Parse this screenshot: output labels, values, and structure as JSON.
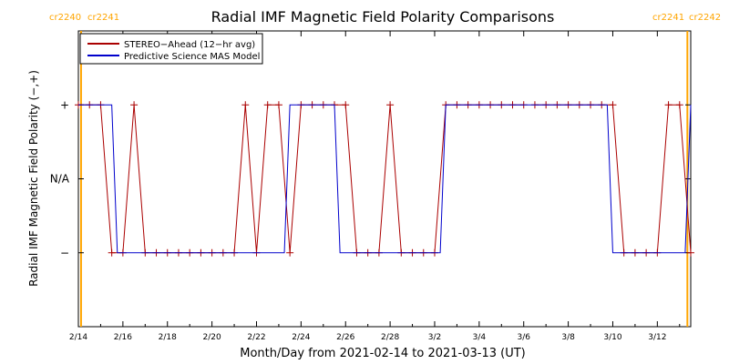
{
  "chart_data": {
    "type": "line",
    "title": "Radial IMF Magnetic Field Polarity Comparisons",
    "xlabel": "Month/Day from 2021-02-14 to 2021-03-13 (UT)",
    "ylabel": "Radial IMF Magnetic Field Polarity (−,+)",
    "xlim": [
      0,
      27.5
    ],
    "ylim": [
      -2,
      2
    ],
    "x_units": "days since 2021-02-14 00:00 UT",
    "x_tick_values": [
      0,
      2,
      4,
      6,
      8,
      10,
      12,
      14,
      16,
      18,
      20,
      22,
      24,
      26
    ],
    "x_tick_labels": [
      "2/14",
      "2/16",
      "2/18",
      "2/20",
      "2/22",
      "2/24",
      "2/26",
      "2/28",
      "3/2",
      "3/4",
      "3/6",
      "3/8",
      "3/10",
      "3/12"
    ],
    "y_tick_values": [
      1,
      0,
      -1
    ],
    "y_tick_labels": [
      "+",
      "N/A",
      "−"
    ],
    "grid": false,
    "legend": "top-left",
    "rotation_markers": [
      {
        "x": 0.12,
        "label_left": "cr2240",
        "label_right": "cr2241",
        "color": "#ffa500"
      },
      {
        "x": 27.35,
        "label_left": "cr2241",
        "label_right": "cr2242",
        "color": "#ffa500"
      }
    ],
    "series": [
      {
        "name": "STEREO−Ahead (12−hr avg)",
        "color": "#aa0000",
        "marker": "plus",
        "points": [
          [
            0.0,
            1
          ],
          [
            0.5,
            1
          ],
          [
            1.0,
            1
          ],
          [
            1.5,
            -1
          ],
          [
            2.0,
            -1
          ],
          [
            2.5,
            1
          ],
          [
            3.0,
            -1
          ],
          [
            3.5,
            -1
          ],
          [
            4.0,
            -1
          ],
          [
            4.5,
            -1
          ],
          [
            5.0,
            -1
          ],
          [
            5.5,
            -1
          ],
          [
            6.0,
            -1
          ],
          [
            6.5,
            -1
          ],
          [
            7.0,
            -1
          ],
          [
            7.5,
            1
          ],
          [
            8.0,
            -1
          ],
          [
            8.5,
            1
          ],
          [
            9.0,
            1
          ],
          [
            9.5,
            -1
          ],
          [
            10.0,
            1
          ],
          [
            10.5,
            1
          ],
          [
            11.0,
            1
          ],
          [
            11.5,
            1
          ],
          [
            12.0,
            1
          ],
          [
            12.5,
            -1
          ],
          [
            13.0,
            -1
          ],
          [
            13.5,
            -1
          ],
          [
            14.0,
            1
          ],
          [
            14.5,
            -1
          ],
          [
            15.0,
            -1
          ],
          [
            15.5,
            -1
          ],
          [
            16.0,
            -1
          ],
          [
            16.5,
            1
          ],
          [
            17.0,
            1
          ],
          [
            17.5,
            1
          ],
          [
            18.0,
            1
          ],
          [
            18.5,
            1
          ],
          [
            19.0,
            1
          ],
          [
            19.5,
            1
          ],
          [
            20.0,
            1
          ],
          [
            20.5,
            1
          ],
          [
            21.0,
            1
          ],
          [
            21.5,
            1
          ],
          [
            22.0,
            1
          ],
          [
            22.5,
            1
          ],
          [
            23.0,
            1
          ],
          [
            23.5,
            1
          ],
          [
            24.0,
            1
          ],
          [
            24.5,
            -1
          ],
          [
            25.0,
            -1
          ],
          [
            25.5,
            -1
          ],
          [
            26.0,
            -1
          ],
          [
            26.5,
            1
          ],
          [
            27.0,
            1
          ],
          [
            27.5,
            -1
          ]
        ],
        "gaps_after_x": [
          20.0
        ]
      },
      {
        "name": "Predictive Science MAS Model",
        "color": "#0000cc",
        "marker": "none",
        "points": [
          [
            0.0,
            1
          ],
          [
            1.5,
            1
          ],
          [
            1.75,
            -1
          ],
          [
            9.25,
            -1
          ],
          [
            9.5,
            1
          ],
          [
            11.5,
            1
          ],
          [
            11.75,
            -1
          ],
          [
            16.25,
            -1
          ],
          [
            16.5,
            1
          ],
          [
            23.75,
            1
          ],
          [
            24.0,
            -1
          ],
          [
            27.25,
            -1
          ],
          [
            27.5,
            1
          ]
        ]
      }
    ]
  }
}
